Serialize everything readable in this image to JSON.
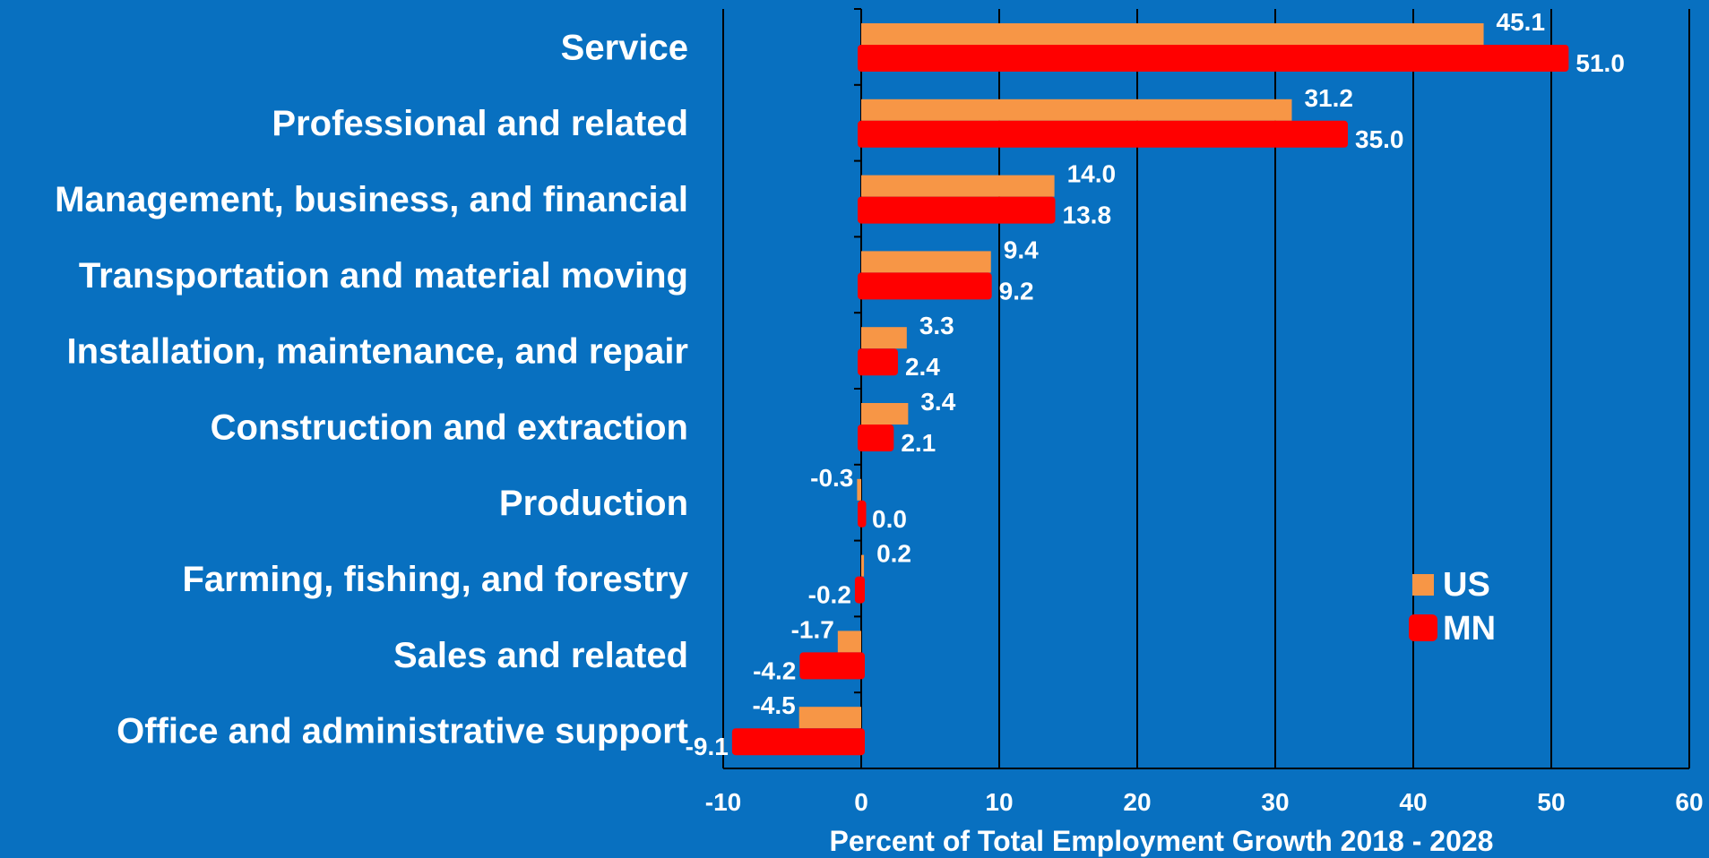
{
  "chart_data": {
    "type": "bar",
    "orientation": "horizontal",
    "categories": [
      "Service",
      "Professional and related",
      "Management, business, and financial",
      "Transportation and material moving",
      "Installation, maintenance, and repair",
      "Construction and extraction",
      "Production",
      "Farming, fishing, and forestry",
      "Sales and related",
      "Office and administrative support"
    ],
    "series": [
      {
        "name": "US",
        "color": "#F79646",
        "values": [
          45.1,
          31.2,
          14.0,
          9.4,
          3.3,
          3.4,
          -0.3,
          0.2,
          -1.7,
          -4.5
        ],
        "labels": [
          "45.1",
          "31.2",
          "14.0",
          "9.4",
          "3.3",
          "3.4",
          "-0.3",
          "0.2",
          "-1.7",
          "-4.5"
        ]
      },
      {
        "name": "MN",
        "color": "#FF0000",
        "values": [
          51.0,
          35.0,
          13.8,
          9.2,
          2.4,
          2.1,
          0.0,
          -0.2,
          -4.2,
          -9.1
        ],
        "labels": [
          "51.0",
          "35.0",
          "13.8",
          "9.2",
          "2.4",
          "2.1",
          "0.0",
          "-0.2",
          "-4.2",
          "-9.1"
        ]
      }
    ],
    "xlim": [
      -10,
      60
    ],
    "xticks": [
      "-10",
      "0",
      "10",
      "20",
      "30",
      "40",
      "50",
      "60"
    ],
    "xlabel": "Percent of Total Employment Growth 2018 - 2028",
    "ylabel": "",
    "title": "",
    "grid": "vertical",
    "legend_position": "right",
    "background": "#0870C0",
    "gridline_color": "#000000",
    "text_color": "#FFFFFF"
  }
}
